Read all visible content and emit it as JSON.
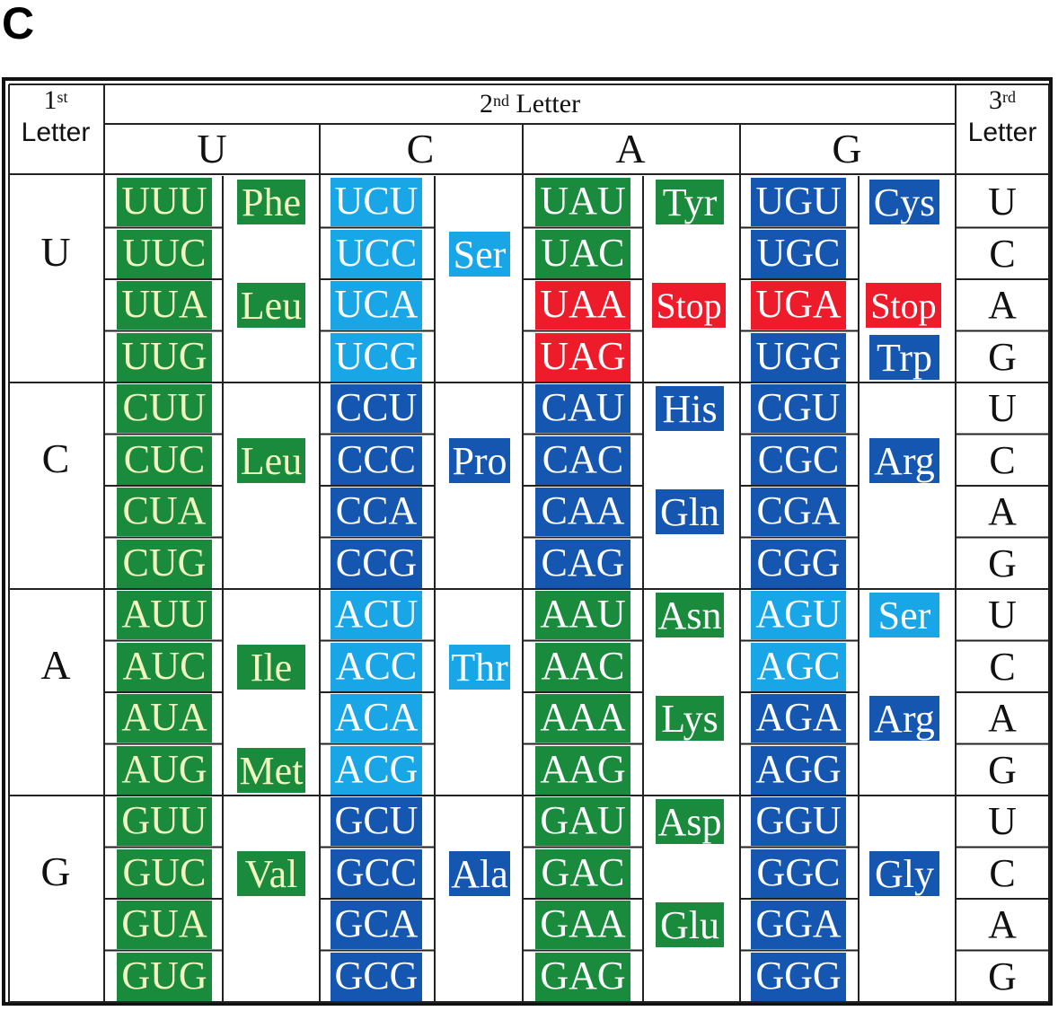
{
  "panel_label": "C",
  "header": {
    "first_sup": "st",
    "first_num": "1",
    "first_word": "Letter",
    "second_num": "2",
    "second_sup": "nd",
    "second_word": "Letter",
    "third_num": "3",
    "third_sup": "rd",
    "third_word": "Letter",
    "second_letters": [
      "U",
      "C",
      "A",
      "G"
    ]
  },
  "first_letters": [
    "U",
    "C",
    "A",
    "G"
  ],
  "third_letters": [
    "U",
    "C",
    "A",
    "G"
  ],
  "colors": {
    "green": "#1a8a3c",
    "light_blue": "#19a6e6",
    "dark_blue": "#1556b0",
    "red": "#ee1c2b",
    "text_white": "#ffffff",
    "text_yellow_green": "#f2f7c0"
  },
  "codons": [
    [
      [
        "UUU",
        "green"
      ],
      [
        "UCU",
        "light_blue"
      ],
      [
        "UAU",
        "green"
      ],
      [
        "UGU",
        "dark_blue"
      ]
    ],
    [
      [
        "UUC",
        "green"
      ],
      [
        "UCC",
        "light_blue"
      ],
      [
        "UAC",
        "green"
      ],
      [
        "UGC",
        "dark_blue"
      ]
    ],
    [
      [
        "UUA",
        "green"
      ],
      [
        "UCA",
        "light_blue"
      ],
      [
        "UAA",
        "red"
      ],
      [
        "UGA",
        "red"
      ]
    ],
    [
      [
        "UUG",
        "green"
      ],
      [
        "UCG",
        "light_blue"
      ],
      [
        "UAG",
        "red"
      ],
      [
        "UGG",
        "dark_blue"
      ]
    ],
    [
      [
        "CUU",
        "green"
      ],
      [
        "CCU",
        "dark_blue"
      ],
      [
        "CAU",
        "dark_blue"
      ],
      [
        "CGU",
        "dark_blue"
      ]
    ],
    [
      [
        "CUC",
        "green"
      ],
      [
        "CCC",
        "dark_blue"
      ],
      [
        "CAC",
        "dark_blue"
      ],
      [
        "CGC",
        "dark_blue"
      ]
    ],
    [
      [
        "CUA",
        "green"
      ],
      [
        "CCA",
        "dark_blue"
      ],
      [
        "CAA",
        "dark_blue"
      ],
      [
        "CGA",
        "dark_blue"
      ]
    ],
    [
      [
        "CUG",
        "green"
      ],
      [
        "CCG",
        "dark_blue"
      ],
      [
        "CAG",
        "dark_blue"
      ],
      [
        "CGG",
        "dark_blue"
      ]
    ],
    [
      [
        "AUU",
        "green"
      ],
      [
        "ACU",
        "light_blue"
      ],
      [
        "AAU",
        "green"
      ],
      [
        "AGU",
        "light_blue"
      ]
    ],
    [
      [
        "AUC",
        "green"
      ],
      [
        "ACC",
        "light_blue"
      ],
      [
        "AAC",
        "green"
      ],
      [
        "AGC",
        "light_blue"
      ]
    ],
    [
      [
        "AUA",
        "green"
      ],
      [
        "ACA",
        "light_blue"
      ],
      [
        "AAA",
        "green"
      ],
      [
        "AGA",
        "dark_blue"
      ]
    ],
    [
      [
        "AUG",
        "green"
      ],
      [
        "ACG",
        "light_blue"
      ],
      [
        "AAG",
        "green"
      ],
      [
        "AGG",
        "dark_blue"
      ]
    ],
    [
      [
        "GUU",
        "green"
      ],
      [
        "GCU",
        "dark_blue"
      ],
      [
        "GAU",
        "green"
      ],
      [
        "GGU",
        "dark_blue"
      ]
    ],
    [
      [
        "GUC",
        "green"
      ],
      [
        "GCC",
        "dark_blue"
      ],
      [
        "GAC",
        "green"
      ],
      [
        "GGC",
        "dark_blue"
      ]
    ],
    [
      [
        "GUA",
        "green"
      ],
      [
        "GCA",
        "dark_blue"
      ],
      [
        "GAA",
        "green"
      ],
      [
        "GGA",
        "dark_blue"
      ]
    ],
    [
      [
        "GUG",
        "green"
      ],
      [
        "GCG",
        "dark_blue"
      ],
      [
        "GAG",
        "green"
      ],
      [
        "GGG",
        "dark_blue"
      ]
    ]
  ],
  "amino_acids": [
    {
      "label": "Phe",
      "row": 0,
      "col": 0,
      "color": "green"
    },
    {
      "label": "Leu",
      "row": 2,
      "col": 0,
      "color": "green"
    },
    {
      "label": "Leu",
      "row": 5,
      "col": 0,
      "color": "green"
    },
    {
      "label": "Ile",
      "row": 9,
      "col": 0,
      "color": "green"
    },
    {
      "label": "Met",
      "row": 11,
      "col": 0,
      "color": "green"
    },
    {
      "label": "Val",
      "row": 13,
      "col": 0,
      "color": "green"
    },
    {
      "label": "Ser",
      "row": 1,
      "col": 1,
      "color": "light_blue"
    },
    {
      "label": "Pro",
      "row": 5,
      "col": 1,
      "color": "dark_blue"
    },
    {
      "label": "Thr",
      "row": 9,
      "col": 1,
      "color": "light_blue"
    },
    {
      "label": "Ala",
      "row": 13,
      "col": 1,
      "color": "dark_blue"
    },
    {
      "label": "Tyr",
      "row": 0,
      "col": 2,
      "color": "green"
    },
    {
      "label": "Stop",
      "row": 2,
      "col": 2,
      "color": "red"
    },
    {
      "label": "His",
      "row": 4,
      "col": 2,
      "color": "dark_blue"
    },
    {
      "label": "Gln",
      "row": 6,
      "col": 2,
      "color": "dark_blue"
    },
    {
      "label": "Asn",
      "row": 8,
      "col": 2,
      "color": "green"
    },
    {
      "label": "Lys",
      "row": 10,
      "col": 2,
      "color": "green"
    },
    {
      "label": "Asp",
      "row": 12,
      "col": 2,
      "color": "green"
    },
    {
      "label": "Glu",
      "row": 14,
      "col": 2,
      "color": "green"
    },
    {
      "label": "Cys",
      "row": 0,
      "col": 3,
      "color": "dark_blue"
    },
    {
      "label": "Stop",
      "row": 2,
      "col": 3,
      "color": "red"
    },
    {
      "label": "Trp",
      "row": 3,
      "col": 3,
      "color": "dark_blue"
    },
    {
      "label": "Arg",
      "row": 5,
      "col": 3,
      "color": "dark_blue"
    },
    {
      "label": "Ser",
      "row": 8,
      "col": 3,
      "color": "light_blue"
    },
    {
      "label": "Arg",
      "row": 10,
      "col": 3,
      "color": "dark_blue"
    },
    {
      "label": "Gly",
      "row": 13,
      "col": 3,
      "color": "dark_blue"
    }
  ]
}
